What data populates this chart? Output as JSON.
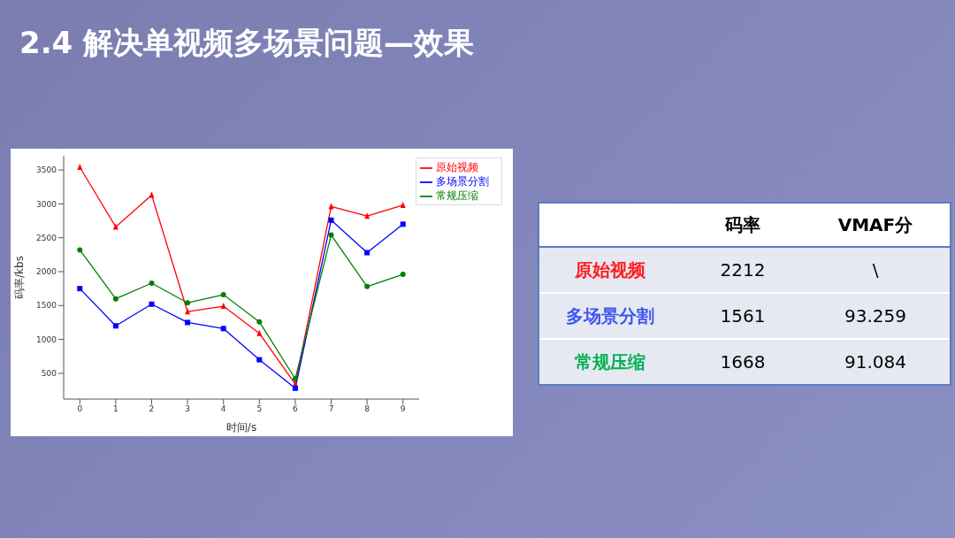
{
  "chart_data": [
    {
      "type": "line",
      "title": "2.4 解决单视频多场景问题—效果",
      "xlabel": "时间/s",
      "ylabel": "码率/kbs",
      "x": [
        0,
        1,
        2,
        3,
        4,
        5,
        6,
        7,
        8,
        9
      ],
      "series": [
        {
          "name": "原始视频",
          "color": "#ff0000",
          "marker": "triangle",
          "values": [
            3540,
            2660,
            3130,
            1410,
            1490,
            1090,
            340,
            2960,
            2820,
            2980
          ]
        },
        {
          "name": "多场景分割",
          "color": "#0000ff",
          "marker": "square",
          "values": [
            1750,
            1200,
            1520,
            1250,
            1160,
            700,
            280,
            2760,
            2280,
            2700
          ]
        },
        {
          "name": "常规压缩",
          "color": "#008000",
          "marker": "circle",
          "values": [
            2320,
            1600,
            1830,
            1540,
            1660,
            1260,
            420,
            2540,
            1780,
            1960
          ]
        }
      ],
      "xlim": [
        -0.45,
        9.45
      ],
      "xticks": [
        0,
        1,
        2,
        3,
        4,
        5,
        6,
        7,
        8,
        9
      ],
      "ylim": [
        120,
        3710
      ],
      "yticks": [
        500,
        1000,
        1500,
        2000,
        2500,
        3000,
        3500
      ],
      "legend": "top right",
      "line_style": "solid"
    },
    {
      "type": "other",
      "annotations": [
        "码率",
        "VMAF分",
        "原始视频",
        "2212",
        "\\",
        "多场景分割",
        "1561",
        "93.259",
        "常规压缩",
        "1668",
        "91.084"
      ],
      "colors": [
        "#ff1a1a",
        "#3d55ee",
        "#00b050"
      ]
    }
  ]
}
